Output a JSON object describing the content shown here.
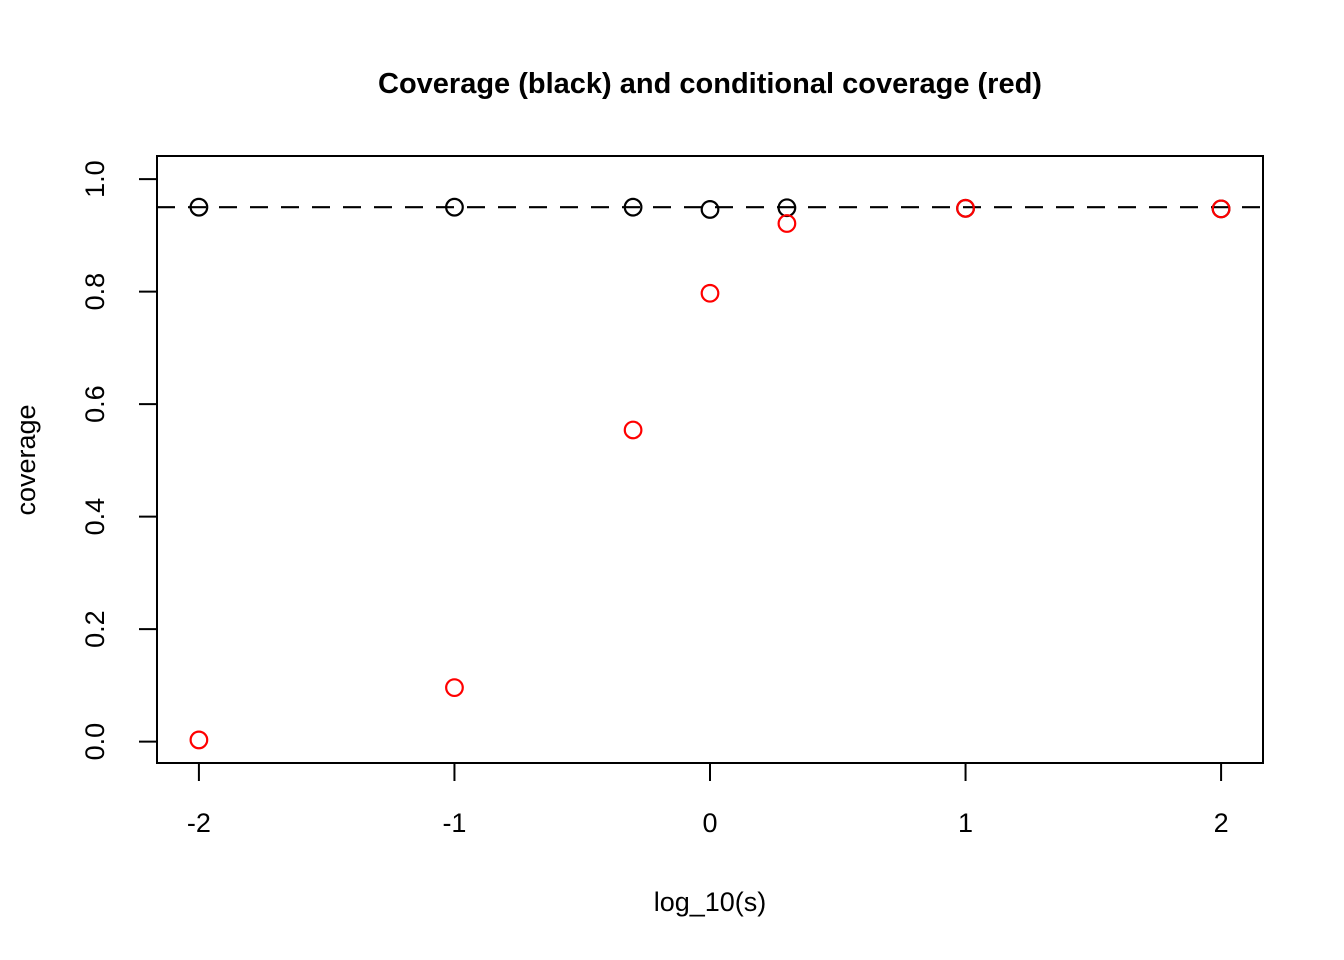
{
  "figure": {
    "background": "#ffffff",
    "foreground": "#000000"
  },
  "chart_data": {
    "type": "scatter",
    "title": "Coverage (black) and conditional coverage (red)",
    "xlabel": "log_10(s)",
    "ylabel": "coverage",
    "xlim": [
      -2.164,
      2.164
    ],
    "ylim": [
      -0.038,
      1.041
    ],
    "grid": false,
    "legend": "none",
    "x_ticks": [
      {
        "value": -2,
        "label": "-2"
      },
      {
        "value": -1,
        "label": "-1"
      },
      {
        "value": 0,
        "label": "0"
      },
      {
        "value": 1,
        "label": "1"
      },
      {
        "value": 2,
        "label": "2"
      }
    ],
    "y_ticks": [
      {
        "value": 0.0,
        "label": "0.0"
      },
      {
        "value": 0.2,
        "label": "0.2"
      },
      {
        "value": 0.4,
        "label": "0.4"
      },
      {
        "value": 0.6,
        "label": "0.6"
      },
      {
        "value": 0.8,
        "label": "0.8"
      },
      {
        "value": 1.0,
        "label": "1.0"
      }
    ],
    "reference_line": {
      "y": 0.95,
      "style": "dashed",
      "color": "#000000"
    },
    "x": [
      -2,
      -1,
      -0.301,
      0,
      0.301,
      1,
      2
    ],
    "series": [
      {
        "name": "coverage",
        "color": "#000000",
        "marker": "open-circle",
        "values": [
          0.95,
          0.95,
          0.95,
          0.946,
          0.949,
          0.948,
          0.947
        ]
      },
      {
        "name": "conditional coverage",
        "color": "#ff0000",
        "marker": "open-circle",
        "values": [
          0.003,
          0.096,
          0.554,
          0.797,
          0.921,
          0.948,
          0.947
        ]
      }
    ]
  }
}
